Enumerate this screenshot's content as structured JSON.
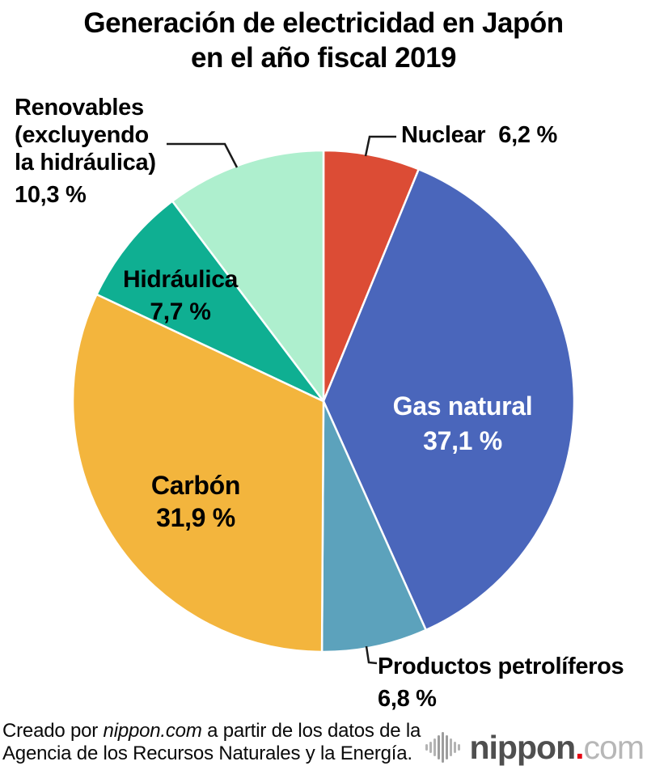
{
  "title": {
    "line1": "Generación de electricidad en Japón",
    "line2": "en el año fiscal 2019"
  },
  "chart_data": {
    "type": "pie",
    "title": "Generación de electricidad en Japón en el año fiscal 2019",
    "value_unit": "%",
    "decimal_separator": ",",
    "start_angle_deg": 0,
    "direction": "clockwise",
    "legend_position": "labels-on-and-around-pie",
    "slices": [
      {
        "id": "nuclear",
        "label": "Nuclear",
        "value": 6.2,
        "display_value": "6,2 %",
        "color": "#DC4C35",
        "label_placement": "outside-top-right"
      },
      {
        "id": "gas-natural",
        "label": "Gas natural",
        "value": 37.1,
        "display_value": "37,1 %",
        "color": "#4A66BB",
        "label_placement": "inside-white"
      },
      {
        "id": "productos-petroliferos",
        "label": "Productos petrolíferos",
        "value": 6.8,
        "display_value": "6,8 %",
        "color": "#5CA2BC",
        "label_placement": "outside-bottom-right"
      },
      {
        "id": "carbon",
        "label": "Carbón",
        "value": 31.9,
        "display_value": "31,9 %",
        "color": "#F3B53D",
        "label_placement": "inside-black"
      },
      {
        "id": "hidraulica",
        "label": "Hidráulica",
        "value": 7.7,
        "display_value": "7,7 %",
        "color": "#0FAF92",
        "label_placement": "inside-black"
      },
      {
        "id": "renovables",
        "label": "Renovables (excluyendo la hidráulica)",
        "label_lines": [
          "Renovables",
          "(excluyendo",
          "la hidráulica)"
        ],
        "value": 10.3,
        "display_value": "10,3 %",
        "color": "#AEEFCE",
        "label_placement": "outside-top-left"
      }
    ]
  },
  "footer": {
    "credit_prefix": "Creado por ",
    "credit_source": "nippon.com",
    "credit_suffix": " a partir de los datos de la",
    "credit_line2": "Agencia de los Recursos Naturales y la Energía."
  },
  "logo": {
    "icon": "sound-wave-bars-icon",
    "name": "nippon",
    "dot": ".",
    "tld": "com",
    "dot_color": "#e60012"
  }
}
